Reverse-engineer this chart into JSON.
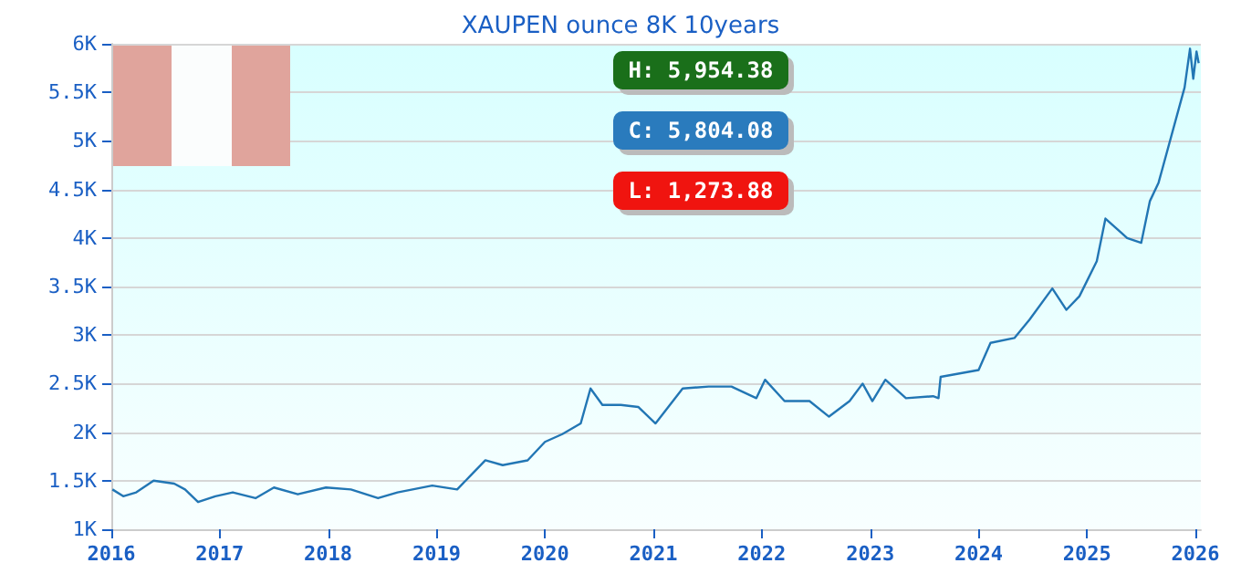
{
  "chart_data": {
    "type": "line",
    "title": "XAUPEN ounce 8K 10years",
    "annotations": [
      "H: 5,954.38",
      "C: 5,804.08",
      "L: 1,273.88"
    ],
    "series": [
      {
        "color": "#2276b4",
        "x": [
          2016.01,
          2016.11,
          2016.23,
          2016.39,
          2016.58,
          2016.68,
          2016.8,
          2016.96,
          2017.12,
          2017.33,
          2017.5,
          2017.72,
          2017.98,
          2018.21,
          2018.46,
          2018.64,
          2018.96,
          2019.19,
          2019.32,
          2019.45,
          2019.61,
          2019.84,
          2020.0,
          2020.16,
          2020.33,
          2020.42,
          2020.53,
          2020.7,
          2020.86,
          2021.02,
          2021.27,
          2021.51,
          2021.72,
          2021.95,
          2022.03,
          2022.21,
          2022.44,
          2022.62,
          2022.81,
          2022.93,
          2023.02,
          2023.14,
          2023.33,
          2023.58,
          2023.63,
          2023.65,
          2024.0,
          2024.11,
          2024.33,
          2024.47,
          2024.68,
          2024.81,
          2024.93,
          2025.09,
          2025.17,
          2025.37,
          2025.5,
          2025.58,
          2025.66,
          2025.9,
          2025.95,
          2025.98,
          2026.01,
          2026.03
        ],
        "values": [
          1410,
          1340,
          1380,
          1500,
          1470,
          1410,
          1280,
          1340,
          1380,
          1320,
          1430,
          1360,
          1430,
          1410,
          1320,
          1380,
          1450,
          1410,
          1560,
          1710,
          1660,
          1710,
          1900,
          1980,
          2090,
          2450,
          2280,
          2280,
          2260,
          2090,
          2450,
          2470,
          2470,
          2350,
          2540,
          2320,
          2320,
          2160,
          2320,
          2500,
          2320,
          2540,
          2350,
          2370,
          2350,
          2570,
          2640,
          2920,
          2970,
          3160,
          3480,
          3260,
          3400,
          3760,
          4200,
          4000,
          3950,
          4380,
          4570,
          5550,
          5950,
          5640,
          5920,
          5800
        ]
      }
    ],
    "xlim": [
      2016,
      2026.05
    ],
    "xticks": [
      2016,
      2017,
      2018,
      2019,
      2020,
      2021,
      2022,
      2023,
      2024,
      2025,
      2026
    ],
    "ylim": [
      1000,
      6000
    ],
    "yticks": [
      {
        "value": 1000,
        "label": "1K"
      },
      {
        "value": 1500,
        "label": "1.5K"
      },
      {
        "value": 2000,
        "label": "2K"
      },
      {
        "value": 2500,
        "label": "2.5K"
      },
      {
        "value": 3000,
        "label": "3K"
      },
      {
        "value": 3500,
        "label": "3.5K"
      },
      {
        "value": 4000,
        "label": "4K"
      },
      {
        "value": 4500,
        "label": "4.5K"
      },
      {
        "value": 5000,
        "label": "5K"
      },
      {
        "value": 5500,
        "label": "5.5K"
      },
      {
        "value": 6000,
        "label": "6K"
      }
    ],
    "grid": "y",
    "marker": "none",
    "line_style": "solid"
  }
}
